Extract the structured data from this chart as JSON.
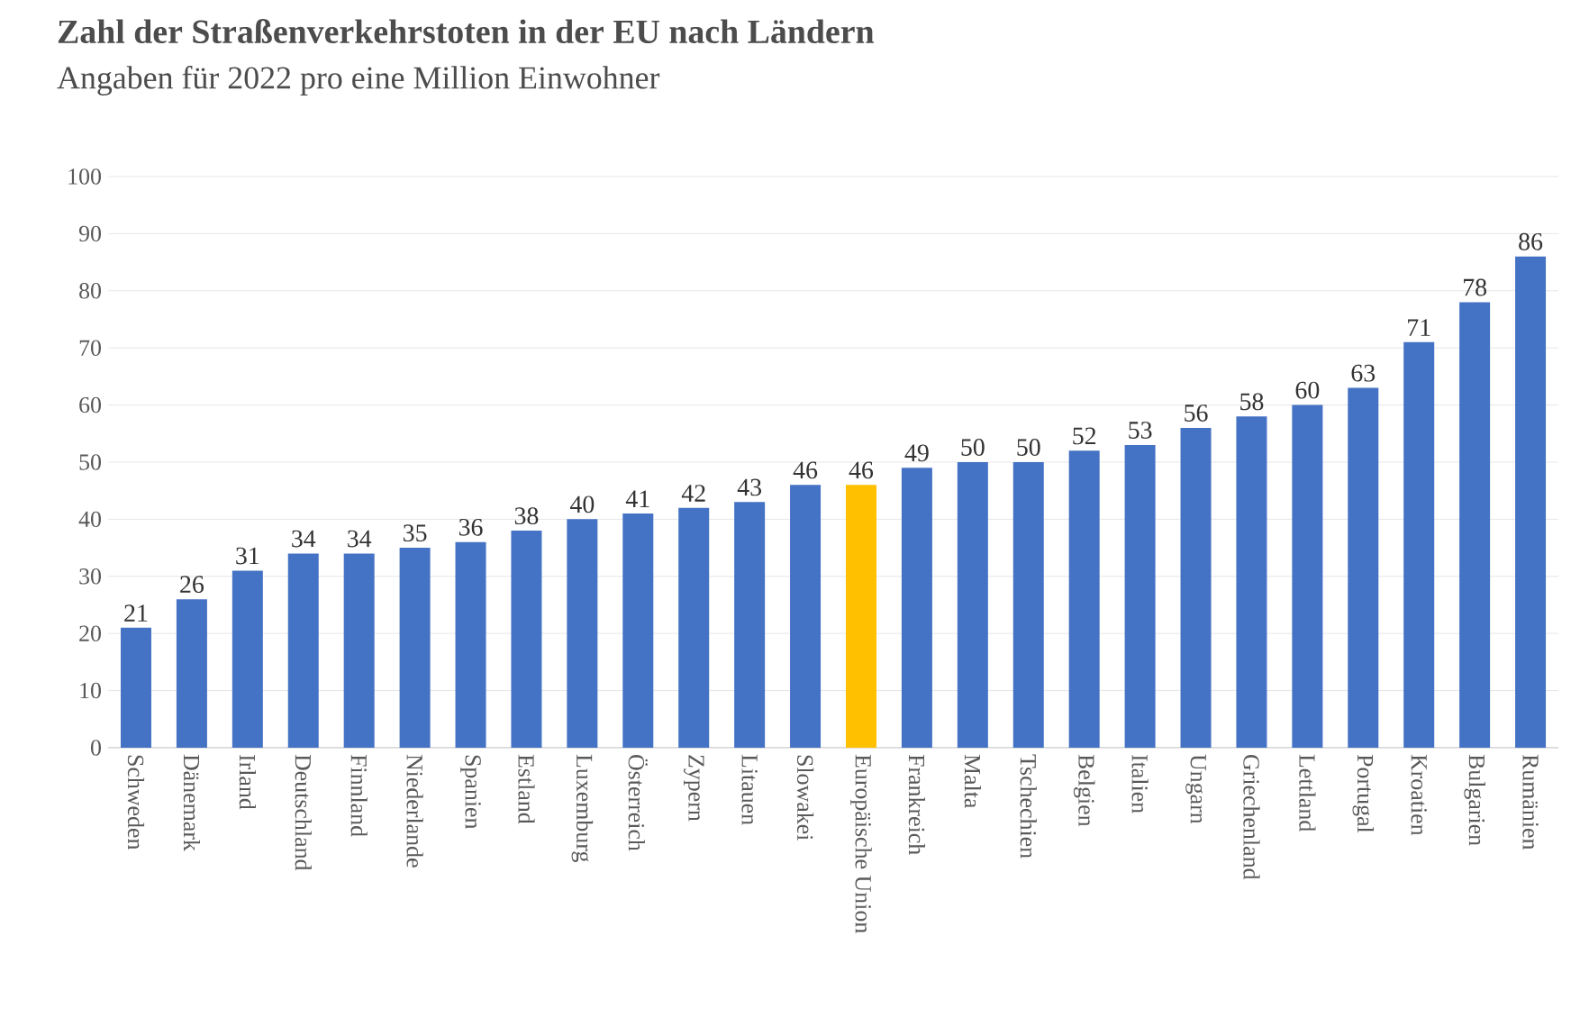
{
  "chart_data": {
    "type": "bar",
    "title": "Zahl der Straßenverkehrstoten in der EU nach Ländern",
    "subtitle": "Angaben für 2022 pro eine Million Einwohner",
    "categories": [
      "Schweden",
      "Dänemark",
      "Irland",
      "Deutschland",
      "Finnland",
      "Niederlande",
      "Spanien",
      "Estland",
      "Luxemburg",
      "Österreich",
      "Zypern",
      "Litauen",
      "Slowakei",
      "Europäische Union",
      "Frankreich",
      "Malta",
      "Tschechien",
      "Belgien",
      "Italien",
      "Ungarn",
      "Griechenland",
      "Lettland",
      "Portugal",
      "Kroatien",
      "Bulgarien",
      "Rumänien"
    ],
    "values": [
      21,
      26,
      31,
      34,
      34,
      35,
      36,
      38,
      40,
      41,
      42,
      43,
      46,
      46,
      49,
      50,
      50,
      52,
      53,
      56,
      58,
      60,
      63,
      71,
      78,
      86
    ],
    "colors": [
      "#4472c4",
      "#4472c4",
      "#4472c4",
      "#4472c4",
      "#4472c4",
      "#4472c4",
      "#4472c4",
      "#4472c4",
      "#4472c4",
      "#4472c4",
      "#4472c4",
      "#4472c4",
      "#4472c4",
      "#ffc000",
      "#4472c4",
      "#4472c4",
      "#4472c4",
      "#4472c4",
      "#4472c4",
      "#4472c4",
      "#4472c4",
      "#4472c4",
      "#4472c4",
      "#4472c4",
      "#4472c4",
      "#4472c4"
    ],
    "ylim": [
      0,
      100
    ],
    "yticks": [
      0,
      10,
      20,
      30,
      40,
      50,
      60,
      70,
      80,
      90,
      100
    ],
    "grid": "y",
    "data_labels": true
  }
}
